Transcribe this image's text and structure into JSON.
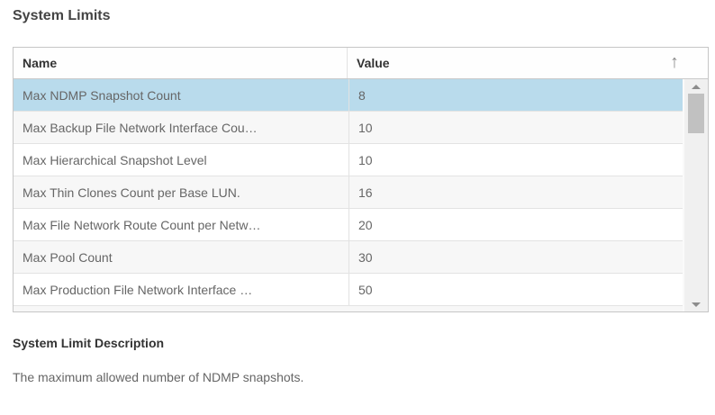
{
  "page": {
    "title": "System Limits"
  },
  "table": {
    "columns": {
      "name": "Name",
      "value": "Value"
    },
    "sort": {
      "glyph": "↑",
      "direction": "ascending",
      "column": "Value"
    },
    "rows": [
      {
        "name": "Max NDMP Snapshot Count",
        "value": "8",
        "selected": true
      },
      {
        "name": "Max Backup File Network Interface Cou…",
        "value": "10",
        "selected": false
      },
      {
        "name": "Max Hierarchical Snapshot Level",
        "value": "10",
        "selected": false
      },
      {
        "name": "Max Thin Clones Count per Base LUN.",
        "value": "16",
        "selected": false
      },
      {
        "name": "Max File Network Route Count per Netw…",
        "value": "20",
        "selected": false
      },
      {
        "name": "Max Pool Count",
        "value": "30",
        "selected": false
      },
      {
        "name": "Max Production File Network Interface …",
        "value": "50",
        "selected": false
      }
    ],
    "colors": {
      "selected_row_bg": "#b9dbec",
      "alt_row_bg": "#f7f7f7",
      "header_text": "#333333",
      "row_text": "#666666",
      "table_border": "#c6c6c6",
      "scrollbar_track": "#f0f0f0",
      "scrollbar_thumb": "#c1c1c1"
    }
  },
  "description": {
    "heading": "System Limit Description",
    "text": "The maximum allowed number of NDMP snapshots."
  }
}
